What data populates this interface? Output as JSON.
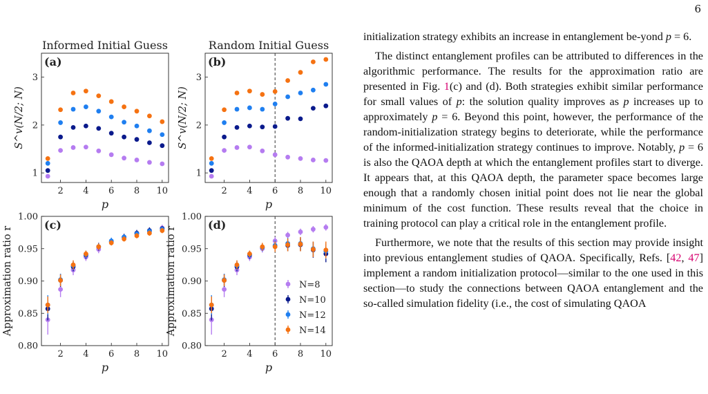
{
  "page_number": "6",
  "colors": {
    "N8": "#b57cf0",
    "N10": "#0a1a8c",
    "N12": "#1f7ff0",
    "N14": "#f57212",
    "cite": "#d6006f"
  },
  "panels": {
    "col_titles": [
      "Informed Initial Guess",
      "Random Initial Guess"
    ],
    "labels": [
      "(a)",
      "(b)",
      "(c)",
      "(d)"
    ],
    "xlabel": "p",
    "ylabel_top": "S^v(N/2; N)",
    "ylabel_bottom": "Approximation ratio r",
    "xticks": [
      "2",
      "4",
      "6",
      "8",
      "10"
    ],
    "yticks_top": [
      "1",
      "2",
      "3"
    ],
    "yticks_bottom": [
      "0.80",
      "0.85",
      "0.90",
      "0.95",
      "1.00"
    ]
  },
  "chart_data": [
    {
      "type": "scatter",
      "panel": "(a)",
      "title": "Informed Initial Guess",
      "xlabel": "p",
      "ylabel": "S^v(N/2; N)",
      "xlim": [
        0.5,
        10.5
      ],
      "ylim": [
        0.8,
        3.5
      ],
      "x": [
        1,
        2,
        3,
        4,
        5,
        6,
        7,
        8,
        9,
        10
      ],
      "series": [
        {
          "name": "N=8",
          "values": [
            0.93,
            1.47,
            1.53,
            1.54,
            1.46,
            1.38,
            1.31,
            1.27,
            1.22,
            1.19
          ]
        },
        {
          "name": "N=10",
          "values": [
            1.05,
            1.75,
            1.95,
            1.98,
            1.93,
            1.83,
            1.75,
            1.7,
            1.63,
            1.57
          ]
        },
        {
          "name": "N=12",
          "values": [
            1.2,
            2.05,
            2.33,
            2.38,
            2.29,
            2.17,
            2.06,
            1.98,
            1.88,
            1.8
          ]
        },
        {
          "name": "N=14",
          "values": [
            1.3,
            2.32,
            2.67,
            2.71,
            2.61,
            2.49,
            2.38,
            2.29,
            2.19,
            2.07
          ]
        }
      ]
    },
    {
      "type": "scatter",
      "panel": "(b)",
      "title": "Random Initial Guess",
      "xlabel": "p",
      "ylabel": "S^v(N/2; N)",
      "xlim": [
        0.5,
        10.5
      ],
      "ylim": [
        0.8,
        3.5
      ],
      "vline": 6,
      "x": [
        1,
        2,
        3,
        4,
        5,
        6,
        7,
        8,
        9,
        10
      ],
      "series": [
        {
          "name": "N=8",
          "values": [
            0.93,
            1.47,
            1.53,
            1.54,
            1.46,
            1.38,
            1.33,
            1.3,
            1.27,
            1.26
          ]
        },
        {
          "name": "N=10",
          "values": [
            1.05,
            1.75,
            1.95,
            1.98,
            1.96,
            1.97,
            2.14,
            2.13,
            2.35,
            2.4
          ]
        },
        {
          "name": "N=12",
          "values": [
            1.2,
            2.05,
            2.33,
            2.36,
            2.33,
            2.44,
            2.59,
            2.67,
            2.73,
            2.85
          ]
        },
        {
          "name": "N=14",
          "values": [
            1.3,
            2.32,
            2.67,
            2.71,
            2.64,
            2.7,
            2.93,
            3.1,
            3.32,
            3.37
          ]
        }
      ]
    },
    {
      "type": "scatter",
      "panel": "(c)",
      "xlabel": "p",
      "ylabel": "Approximation ratio r",
      "xlim": [
        0.5,
        10.5
      ],
      "ylim": [
        0.8,
        1.0
      ],
      "x": [
        1,
        2,
        3,
        4,
        5,
        6,
        7,
        8,
        9,
        10
      ],
      "series": [
        {
          "name": "N=8",
          "values": [
            0.84,
            0.887,
            0.917,
            0.937,
            0.949,
            0.96,
            0.967,
            0.973,
            0.977,
            0.982
          ],
          "errors": [
            0.023,
            0.012,
            0.008,
            0.006,
            0.006,
            0.005,
            0.005,
            0.005,
            0.005,
            0.005
          ]
        },
        {
          "name": "N=10",
          "values": [
            0.857,
            0.901,
            0.922,
            0.94,
            0.953,
            0.961,
            0.968,
            0.974,
            0.978,
            0.981
          ],
          "errors": [
            0.018,
            0.01,
            0.007,
            0.006,
            0.006,
            0.005,
            0.005,
            0.005,
            0.005,
            0.004
          ]
        },
        {
          "name": "N=12",
          "values": [
            0.863,
            0.902,
            0.924,
            0.941,
            0.953,
            0.962,
            0.968,
            0.973,
            0.977,
            0.98
          ],
          "errors": [
            0.015,
            0.009,
            0.007,
            0.006,
            0.005,
            0.005,
            0.004,
            0.004,
            0.004,
            0.004
          ]
        },
        {
          "name": "N=14",
          "values": [
            0.863,
            0.901,
            0.925,
            0.942,
            0.953,
            0.959,
            0.965,
            0.97,
            0.974,
            0.978
          ],
          "errors": [
            0.013,
            0.009,
            0.007,
            0.005,
            0.005,
            0.004,
            0.004,
            0.004,
            0.004,
            0.004
          ]
        }
      ]
    },
    {
      "type": "scatter",
      "panel": "(d)",
      "xlabel": "p",
      "ylabel": "Approximation ratio r",
      "xlim": [
        0.5,
        10.5
      ],
      "ylim": [
        0.8,
        1.0
      ],
      "vline": 6,
      "legend": "right",
      "x": [
        1,
        2,
        3,
        4,
        5,
        6,
        7,
        8,
        9,
        10
      ],
      "series": [
        {
          "name": "N=8",
          "values": [
            0.84,
            0.887,
            0.917,
            0.937,
            0.95,
            0.962,
            0.971,
            0.976,
            0.98,
            0.983
          ],
          "errors": [
            0.023,
            0.012,
            0.008,
            0.006,
            0.006,
            0.006,
            0.005,
            0.005,
            0.005,
            0.005
          ]
        },
        {
          "name": "N=10",
          "values": [
            0.857,
            0.901,
            0.922,
            0.94,
            0.952,
            0.954,
            0.955,
            0.956,
            0.948,
            0.942
          ],
          "errors": [
            0.018,
            0.01,
            0.007,
            0.006,
            0.006,
            0.008,
            0.009,
            0.01,
            0.012,
            0.013
          ]
        },
        {
          "name": "N=12",
          "values": [
            0.863,
            0.902,
            0.924,
            0.941,
            0.952,
            0.955,
            0.958,
            0.958,
            0.95,
            0.946
          ],
          "errors": [
            0.015,
            0.009,
            0.007,
            0.006,
            0.006,
            0.008,
            0.009,
            0.01,
            0.011,
            0.012
          ]
        },
        {
          "name": "N=14",
          "values": [
            0.863,
            0.901,
            0.925,
            0.942,
            0.953,
            0.953,
            0.956,
            0.957,
            0.949,
            0.948
          ],
          "errors": [
            0.013,
            0.009,
            0.007,
            0.005,
            0.006,
            0.008,
            0.01,
            0.011,
            0.012,
            0.013
          ]
        }
      ]
    }
  ],
  "text": {
    "p1": [
      {
        "t": "initialization strategy exhibits an increase in entanglement be-"
      },
      {
        "t": "yond "
      },
      {
        "t": "p",
        "i": true
      },
      {
        "t": " = 6."
      }
    ],
    "p2": [
      {
        "t": "The distinct entanglement profiles can be attributed to differences in the algorithmic performance. The results for the approximation ratio are presented in Fig. "
      },
      {
        "t": "1",
        "c": true
      },
      {
        "t": "(c) and (d). Both strategies exhibit similar performance for small values of "
      },
      {
        "t": "p",
        "i": true
      },
      {
        "t": ": the solution quality improves as "
      },
      {
        "t": "p",
        "i": true
      },
      {
        "t": " increases up to approximately "
      },
      {
        "t": "p",
        "i": true
      },
      {
        "t": " = 6. Beyond this point, however, the performance of the random-initialization strategy begins to deteriorate, while the performance of the informed-initialization strategy continues to improve. Notably, "
      },
      {
        "t": "p",
        "i": true
      },
      {
        "t": " = 6 is also the QAOA depth at which the entanglement profiles start to diverge. It appears that, at this QAOA depth, the parameter space becomes large enough that a randomly chosen initial point does not lie near the global minimum of the cost function. These results reveal that the choice in training protocol can play a critical role in the entanglement profile."
      }
    ],
    "p3": [
      {
        "t": "Furthermore, we note that the results of this section may provide insight into previous entanglement studies of QAOA. Specifically, Refs. ["
      },
      {
        "t": "42",
        "c": true
      },
      {
        "t": ", "
      },
      {
        "t": "47",
        "c": true
      },
      {
        "t": "] implement a random initialization protocol—similar to the one used in this section—to study the connections between QAOA entanglement and the so-called simulation fidelity (i.e., the cost of simulating QAOA"
      }
    ]
  }
}
